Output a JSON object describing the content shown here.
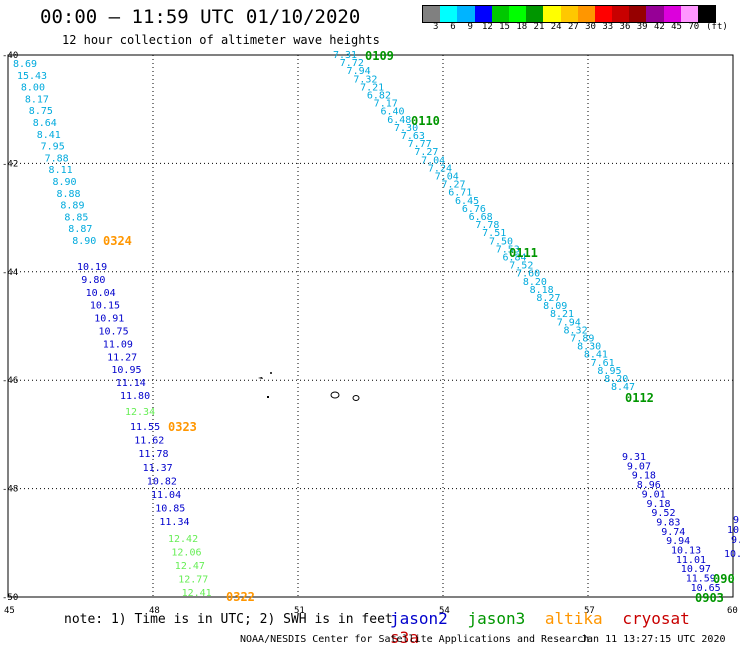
{
  "header": {
    "title": "00:00 – 11:59 UTC 01/10/2020",
    "subtitle": "12 hour collection of altimeter wave heights"
  },
  "colorbar": {
    "colors": [
      "#808080",
      "#00ffff",
      "#00b4ff",
      "#0000ff",
      "#00c800",
      "#00ff00",
      "#009600",
      "#ffff00",
      "#ffc800",
      "#ff9600",
      "#ff0000",
      "#c80000",
      "#960000",
      "#960096",
      "#dc00dc",
      "#ff96ff",
      "#000000"
    ],
    "ticks": [
      "3",
      "6",
      "9",
      "12",
      "15",
      "18",
      "21",
      "24",
      "27",
      "30",
      "33",
      "36",
      "39",
      "42",
      "45",
      "70",
      "(ft)"
    ]
  },
  "colors": {
    "jason2": "#0000cc",
    "jason3": "#009600",
    "altika": "#ff9600",
    "cryosat": "#c80000",
    "s3a": "#c80000",
    "light_blue": "#00aadd",
    "light_green": "#66ee55"
  },
  "axes": {
    "x_ticks": [
      "45",
      "48",
      "51",
      "54",
      "57",
      "60"
    ],
    "y_ticks": [
      "-40",
      "-42",
      "-44",
      "-46",
      "-48",
      "-50"
    ]
  },
  "passes": {
    "p0109": "0109",
    "p0110": "0110",
    "p0111": "0111",
    "p0112": "0112",
    "p0324": "0324",
    "p0323": "0323",
    "p0322": "0322",
    "p0903": "0903",
    "p090": "090"
  },
  "track_left_upper": [
    "8.69",
    "15.43",
    "8.00",
    "8.17",
    "8.75",
    "8.64",
    "8.41",
    "7.95",
    "7.88",
    "8.11",
    "8.90",
    "8.88",
    "8.89",
    "8.85",
    "8.87",
    "8.90"
  ],
  "track_left_mid": [
    "10.19",
    "9.80",
    "10.04",
    "10.15",
    "10.91",
    "10.75",
    "11.09",
    "11.27",
    "10.95",
    "11.14",
    "11.80"
  ],
  "track_left_low_a": [
    "12.34"
  ],
  "track_left_low_b": [
    "11.55",
    "11.62",
    "11.78",
    "11.37",
    "10.82",
    "11.04",
    "10.85",
    "11.34"
  ],
  "track_left_low_c": [
    "12.42",
    "12.06",
    "12.47",
    "12.77",
    "12.41"
  ],
  "track_diag": [
    "7.31",
    "7.72",
    "7.94",
    "7.32",
    "7.21",
    "6.82",
    "7.17",
    "6.40",
    "6.48",
    "7.30",
    "7.63",
    "7.77",
    "7.27",
    "7.04",
    "7.24",
    "7.04",
    "7.27",
    "6.71",
    "6.45",
    "6.76",
    "6.68",
    "7.78",
    "7.51",
    "7.50",
    "7.53",
    "6.84",
    "7.52",
    "7.60",
    "8.20",
    "8.18",
    "8.27",
    "8.09",
    "8.21",
    "7.94",
    "8.32",
    "7.89",
    "8.30",
    "8.41",
    "7.61",
    "8.95",
    "8.20",
    "8.47"
  ],
  "track_diag_low": [
    "9.31",
    "9.07",
    "9.18",
    "8.96",
    "9.01",
    "9.18",
    "9.52",
    "9.83",
    "9.74",
    "9.94",
    "10.13",
    "11.01",
    "10.97",
    "11.59",
    "10.65"
  ],
  "track_edge": [
    "9.",
    "10.",
    "9.",
    "10."
  ],
  "note": "note: 1) Time is in UTC; 2) SWH is in feet",
  "legend": {
    "jason2": "jason2",
    "jason3": "jason3",
    "altika": "altika",
    "cryosat": "cryosat",
    "s3a": "s3a"
  },
  "credit": "NOAA/NESDIS Center for Satellite Applications and Research",
  "credit_time": "Jan 11 13:27:15 UTC 2020"
}
